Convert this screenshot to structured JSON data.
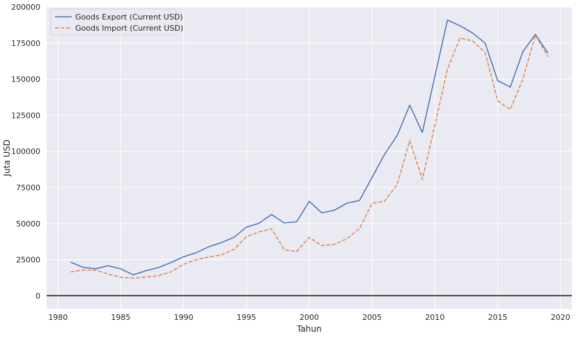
{
  "chart_data": {
    "type": "line",
    "title": "",
    "xlabel": "Tahun",
    "ylabel": "Juta USD",
    "xlim": [
      1979.1,
      2020.9
    ],
    "ylim": [
      -9000,
      200000
    ],
    "xticks": [
      1980,
      1985,
      1990,
      1995,
      2000,
      2005,
      2010,
      2015,
      2020
    ],
    "yticks": [
      0,
      25000,
      50000,
      75000,
      100000,
      125000,
      150000,
      175000,
      200000
    ],
    "grid": true,
    "legend_position": "top-left",
    "zero_line": true,
    "x": [
      1981,
      1982,
      1983,
      1984,
      1985,
      1986,
      1987,
      1988,
      1989,
      1990,
      1991,
      1992,
      1993,
      1994,
      1995,
      1996,
      1997,
      1998,
      1999,
      2000,
      2001,
      2002,
      2003,
      2004,
      2005,
      2006,
      2007,
      2008,
      2009,
      2010,
      2011,
      2012,
      2013,
      2014,
      2015,
      2016,
      2017,
      2018,
      2019
    ],
    "series": [
      {
        "name": "Goods Export (Current USD)",
        "color": "#4c72b0",
        "dash": "solid",
        "values": [
          23300,
          19700,
          18700,
          20800,
          18600,
          14500,
          17300,
          19500,
          23000,
          27000,
          29800,
          33900,
          36800,
          40400,
          47500,
          50200,
          56300,
          50400,
          51200,
          65400,
          57400,
          59200,
          64100,
          66000,
          82000,
          98000,
          111000,
          132000,
          113000,
          152000,
          191000,
          187000,
          182000,
          175000,
          149000,
          144500,
          169000,
          181000,
          168000
        ]
      },
      {
        "name": "Goods Import (Current USD)",
        "color": "#dd8452",
        "dash": "dashed",
        "values": [
          16500,
          17800,
          17700,
          15000,
          12700,
          12200,
          12900,
          13900,
          16500,
          21800,
          25000,
          26800,
          28300,
          32000,
          40800,
          44200,
          46400,
          31900,
          30600,
          40400,
          34700,
          35600,
          39500,
          46500,
          64000,
          65600,
          77000,
          107500,
          80500,
          118000,
          157000,
          178500,
          176500,
          168500,
          135000,
          129000,
          150000,
          180500,
          165500
        ]
      }
    ]
  }
}
